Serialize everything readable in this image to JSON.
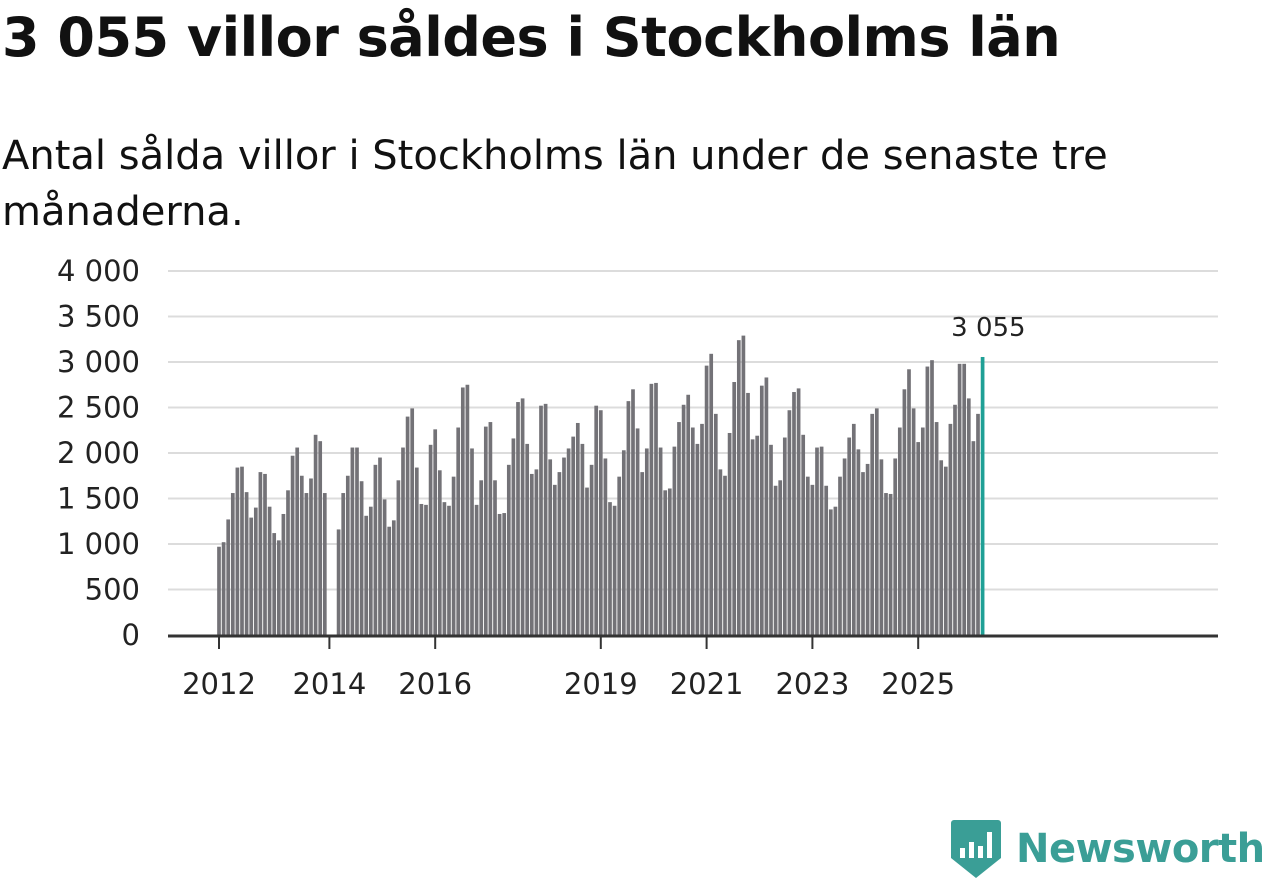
{
  "chart_data": {
    "type": "bar",
    "title": "3 055 villor såldes i Stockholms län",
    "subtitle": "Antal sålda villor i Stockholms län under de senaste tre månaderna.",
    "xlabel": "",
    "ylabel": "",
    "ylim": [
      0,
      4000
    ],
    "y_ticks": [
      0,
      500,
      1000,
      1500,
      2000,
      2500,
      3000,
      3500,
      4000
    ],
    "y_tick_labels": [
      "0",
      "500",
      "1 000",
      "1 500",
      "2 000",
      "2 500",
      "3 000",
      "3 500",
      "4 000"
    ],
    "x_tick_labels": [
      "2012",
      "2014",
      "2016",
      "2019",
      "2021",
      "2023",
      "2025"
    ],
    "x_tick_positions": [
      0,
      24,
      47,
      83,
      106,
      129,
      152
    ],
    "categories_note": "Monthly bars (rolling three-month totals), first bar Jan 2012, last bar highlighted",
    "values": [
      970,
      1020,
      1270,
      1560,
      1840,
      1850,
      1570,
      1290,
      1400,
      1790,
      1770,
      1410,
      1120,
      1040,
      1330,
      1590,
      1970,
      2060,
      1750,
      1560,
      1720,
      2200,
      2130,
      1560,
      0,
      0,
      1160,
      1560,
      1750,
      2060,
      2060,
      1690,
      1310,
      1410,
      1870,
      1950,
      1490,
      1190,
      1260,
      1700,
      2060,
      2400,
      2490,
      1840,
      1440,
      1430,
      2090,
      2260,
      1810,
      1460,
      1420,
      1740,
      2280,
      2720,
      2750,
      2050,
      1430,
      1700,
      2290,
      2340,
      1700,
      1330,
      1340,
      1870,
      2160,
      2560,
      2600,
      2100,
      1770,
      1820,
      2520,
      2540,
      1930,
      1650,
      1790,
      1950,
      2050,
      2180,
      2330,
      2100,
      1620,
      1870,
      2520,
      2470,
      1940,
      1460,
      1420,
      1740,
      2030,
      2570,
      2700,
      2270,
      1790,
      2050,
      2760,
      2770,
      2060,
      1590,
      1610,
      2070,
      2340,
      2530,
      2640,
      2280,
      2100,
      2320,
      2960,
      3090,
      2430,
      1820,
      1750,
      2220,
      2780,
      3240,
      3290,
      2660,
      2150,
      2190,
      2740,
      2830,
      2090,
      1640,
      1700,
      2170,
      2470,
      2670,
      2710,
      2200,
      1740,
      1650,
      2060,
      2070,
      1640,
      1380,
      1410,
      1740,
      1940,
      2170,
      2320,
      2040,
      1790,
      1880,
      2430,
      2490,
      1930,
      1560,
      1550,
      1940,
      2280,
      2700,
      2920,
      2490,
      2120,
      2280,
      2950,
      3020,
      2340,
      1920,
      1850,
      2320,
      2530,
      2980,
      2980,
      2600,
      2130,
      2430,
      3055
    ],
    "highlight_index": 166,
    "highlight_label": "3 055",
    "bar_color": "#737277",
    "highlight_color": "#1fa096",
    "grid_color": "#dcdcdc",
    "axis_color": "#333333"
  },
  "brand": {
    "name": "Newsworthy",
    "color": "#3a9e96"
  }
}
